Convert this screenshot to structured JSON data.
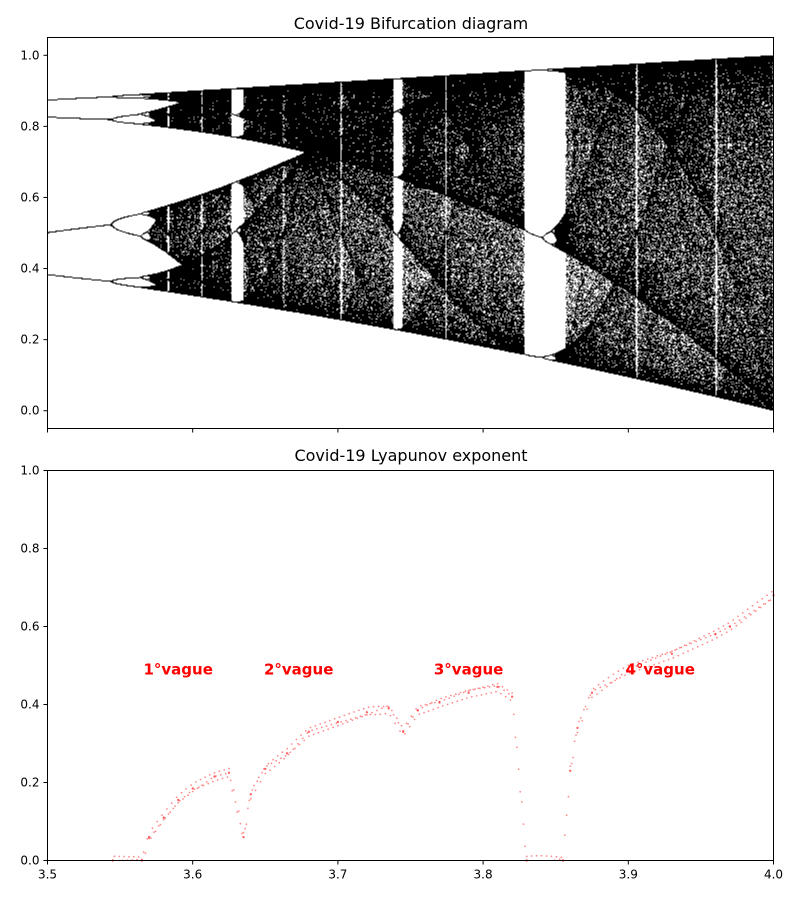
{
  "chart_data": [
    {
      "type": "scatter",
      "title": "Covid-19 Bifurcation diagram",
      "xlabel": "",
      "ylabel": "",
      "xlim": [
        3.5,
        4.0
      ],
      "ylim": [
        -0.05,
        1.05
      ],
      "xticks": [
        3.5,
        3.6,
        3.7,
        3.8,
        3.9,
        4.0
      ],
      "xtick_labels_visible": false,
      "yticks": [
        0.0,
        0.2,
        0.4,
        0.6,
        0.8,
        1.0
      ],
      "ytick_labels": [
        "0.0",
        "0.2",
        "0.4",
        "0.6",
        "0.8",
        "1.0"
      ],
      "grid": false,
      "marker_color": "#000000",
      "series": [
        {
          "model": "x(n+1) = r * x(n) * (1 - x(n)), attractor points after transient",
          "r_range": [
            3.5,
            4.0
          ],
          "sample_points_r_x": [
            [
              3.5,
              0.383
            ],
            [
              3.5,
              0.5
            ],
            [
              3.5,
              0.827
            ],
            [
              3.5,
              0.875
            ],
            [
              3.6,
              0.36
            ],
            [
              3.6,
              0.89
            ],
            [
              3.63,
              0.31
            ],
            [
              3.63,
              0.91
            ],
            [
              3.74,
              0.236
            ],
            [
              3.74,
              0.935
            ],
            [
              3.84,
              0.154
            ],
            [
              3.84,
              0.489
            ],
            [
              3.84,
              0.958
            ],
            [
              4.0,
              0.0
            ],
            [
              4.0,
              1.0
            ]
          ]
        }
      ]
    },
    {
      "type": "scatter",
      "title": "Covid-19 Lyapunov exponent",
      "xlabel": "",
      "ylabel": "",
      "xlim": [
        3.5,
        4.0
      ],
      "ylim": [
        0.0,
        1.0
      ],
      "xticks": [
        3.5,
        3.6,
        3.7,
        3.8,
        3.9,
        4.0
      ],
      "xtick_labels": [
        "3.5",
        "3.6",
        "3.7",
        "3.8",
        "3.9",
        "4.0"
      ],
      "yticks": [
        0.0,
        0.2,
        0.4,
        0.6,
        0.8,
        1.0
      ],
      "ytick_labels": [
        "0.0",
        "0.2",
        "0.4",
        "0.6",
        "0.8",
        "1.0"
      ],
      "grid": false,
      "marker_color": "#ff0000",
      "series": [
        {
          "points": [
            [
              3.545,
              0.0
            ],
            [
              3.565,
              0.0
            ],
            [
              3.57,
              0.06
            ],
            [
              3.58,
              0.11
            ],
            [
              3.59,
              0.155
            ],
            [
              3.6,
              0.185
            ],
            [
              3.615,
              0.215
            ],
            [
              3.625,
              0.225
            ],
            [
              3.635,
              0.06
            ],
            [
              3.64,
              0.17
            ],
            [
              3.65,
              0.235
            ],
            [
              3.665,
              0.275
            ],
            [
              3.68,
              0.33
            ],
            [
              3.7,
              0.355
            ],
            [
              3.72,
              0.38
            ],
            [
              3.735,
              0.39
            ],
            [
              3.745,
              0.33
            ],
            [
              3.755,
              0.385
            ],
            [
              3.77,
              0.405
            ],
            [
              3.79,
              0.43
            ],
            [
              3.81,
              0.445
            ],
            [
              3.82,
              0.42
            ],
            [
              3.83,
              0.0
            ],
            [
              3.855,
              0.0
            ],
            [
              3.86,
              0.23
            ],
            [
              3.865,
              0.34
            ],
            [
              3.875,
              0.43
            ],
            [
              3.9,
              0.49
            ],
            [
              3.93,
              0.53
            ],
            [
              3.96,
              0.58
            ],
            [
              3.97,
              0.6
            ],
            [
              4.0,
              0.68
            ]
          ]
        }
      ],
      "annotations": [
        {
          "text": "1°vague",
          "x": 3.59,
          "y": 0.49,
          "color": "#ff0000"
        },
        {
          "text": "2°vague",
          "x": 3.673,
          "y": 0.49,
          "color": "#ff0000"
        },
        {
          "text": "3°vague",
          "x": 3.79,
          "y": 0.49,
          "color": "#ff0000"
        },
        {
          "text": "4°vague",
          "x": 3.922,
          "y": 0.49,
          "color": "#ff0000"
        }
      ]
    }
  ]
}
